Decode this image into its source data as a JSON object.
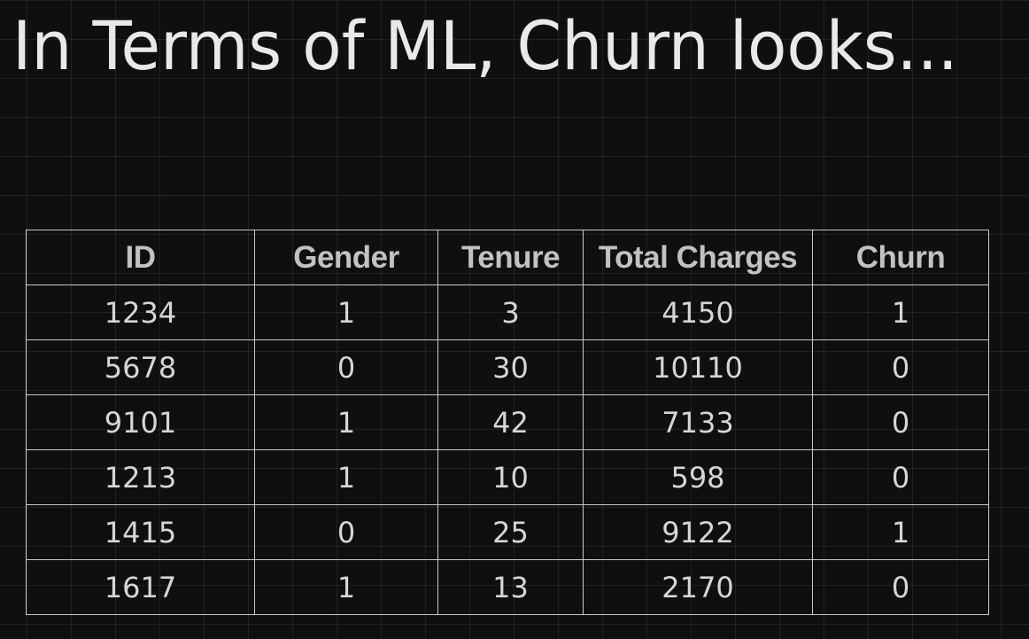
{
  "slide": {
    "title": "In Terms of ML, Churn looks..."
  },
  "table": {
    "headers": [
      "ID",
      "Gender",
      "Tenure",
      "Total Charges",
      "Churn"
    ],
    "rows": [
      [
        "1234",
        "1",
        "3",
        "4150",
        "1"
      ],
      [
        "5678",
        "0",
        "30",
        "10110",
        "0"
      ],
      [
        "9101",
        "1",
        "42",
        "7133",
        "0"
      ],
      [
        "1213",
        "1",
        "10",
        "598",
        "0"
      ],
      [
        "1415",
        "0",
        "25",
        "9122",
        "1"
      ],
      [
        "1617",
        "1",
        "13",
        "2170",
        "0"
      ]
    ]
  }
}
